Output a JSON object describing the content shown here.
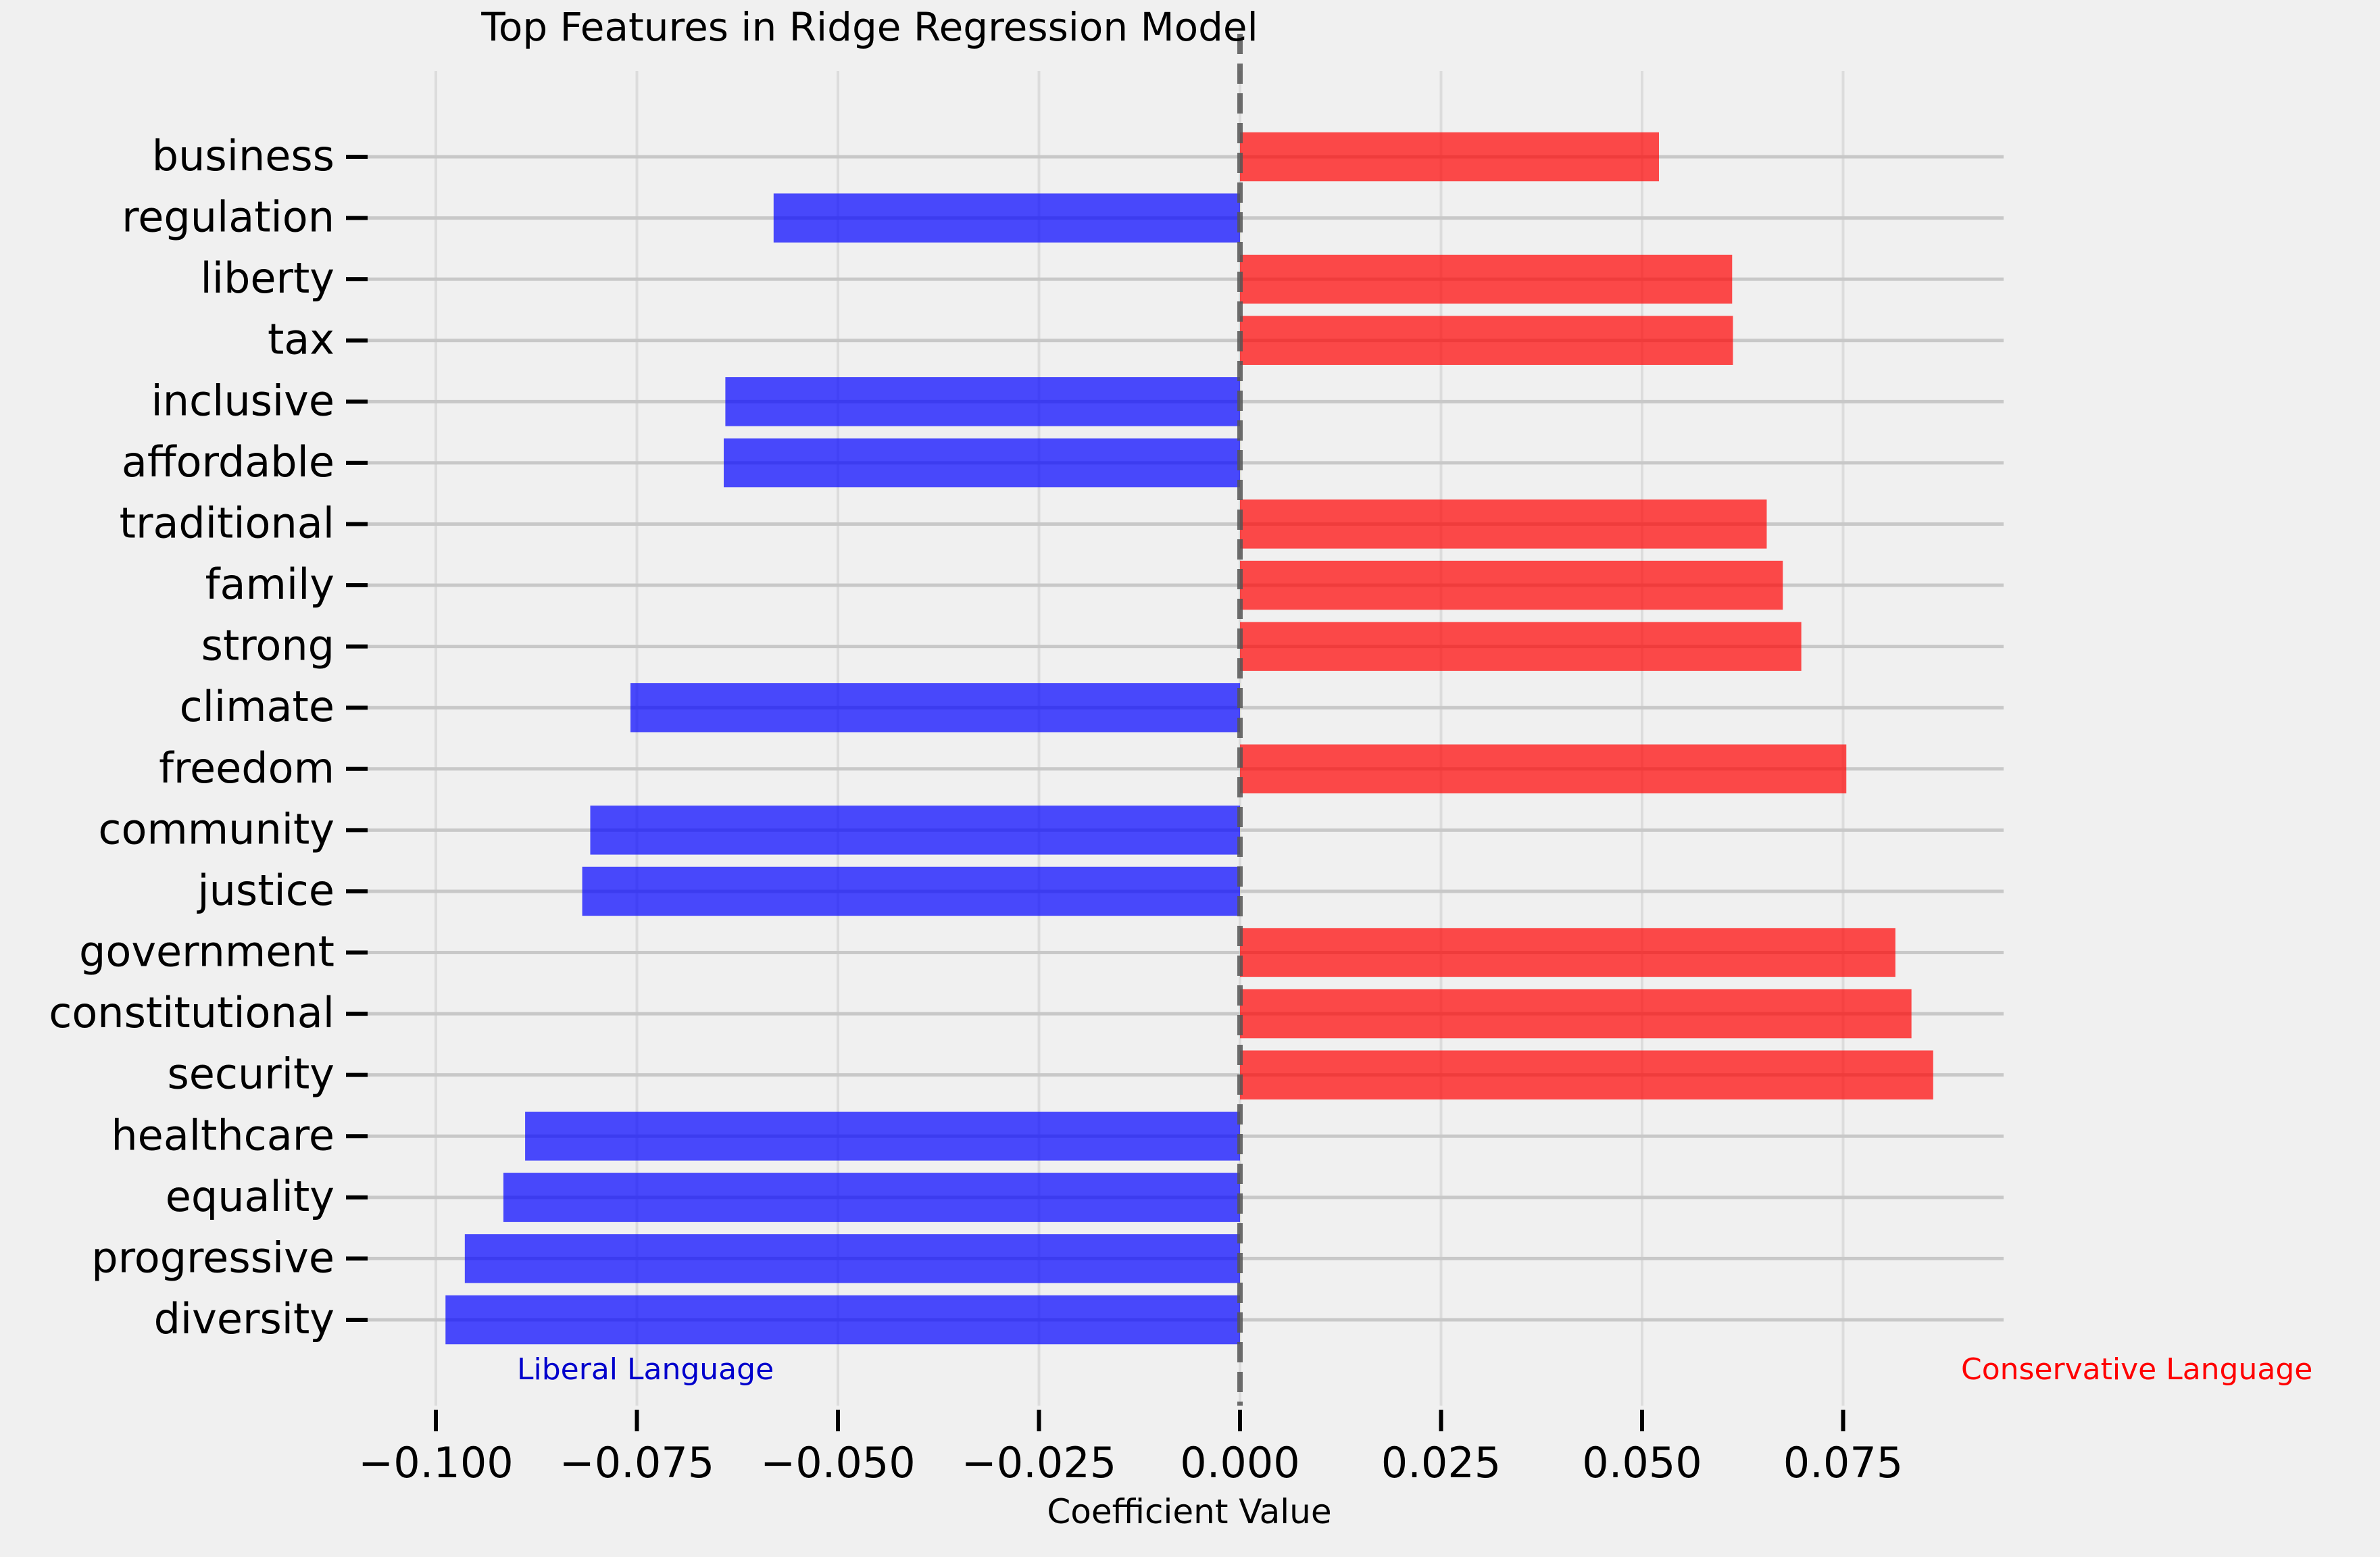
{
  "chart_data": {
    "type": "bar",
    "orientation": "horizontal",
    "title": "Top Features in Ridge Regression Model",
    "xlabel": "Coefficient Value",
    "ylabel": "",
    "categories": [
      "diversity",
      "progressive",
      "equality",
      "healthcare",
      "security",
      "constitutional",
      "government",
      "justice",
      "community",
      "freedom",
      "climate",
      "strong",
      "family",
      "traditional",
      "affordable",
      "inclusive",
      "tax",
      "liberty",
      "regulation",
      "business"
    ],
    "values": [
      -0.0988,
      -0.0964,
      -0.0916,
      -0.0889,
      0.0862,
      0.0835,
      0.0815,
      -0.0818,
      -0.0808,
      0.0754,
      -0.0758,
      0.0698,
      0.0675,
      0.0655,
      -0.0642,
      -0.064,
      0.0613,
      0.0612,
      -0.058,
      0.0521
    ],
    "xlim": [
      -0.1,
      0.095
    ],
    "xticks": [
      -0.1,
      -0.075,
      -0.05,
      -0.025,
      0.0,
      0.025,
      0.05,
      0.075
    ],
    "xtick_labels": [
      "−0.100",
      "−0.075",
      "−0.050",
      "−0.025",
      "0.000",
      "0.025",
      "0.050",
      "0.075"
    ],
    "grid": true,
    "zero_line": "dashed",
    "colors": {
      "negative": "#0000ff",
      "positive": "#ff0000",
      "background": "#f0f0f0",
      "zero_line": "#555555"
    },
    "annotations": [
      {
        "text": "Liberal Language",
        "color": "#0000cc"
      },
      {
        "text": "Conservative Language",
        "color": "#ff0000"
      }
    ]
  }
}
